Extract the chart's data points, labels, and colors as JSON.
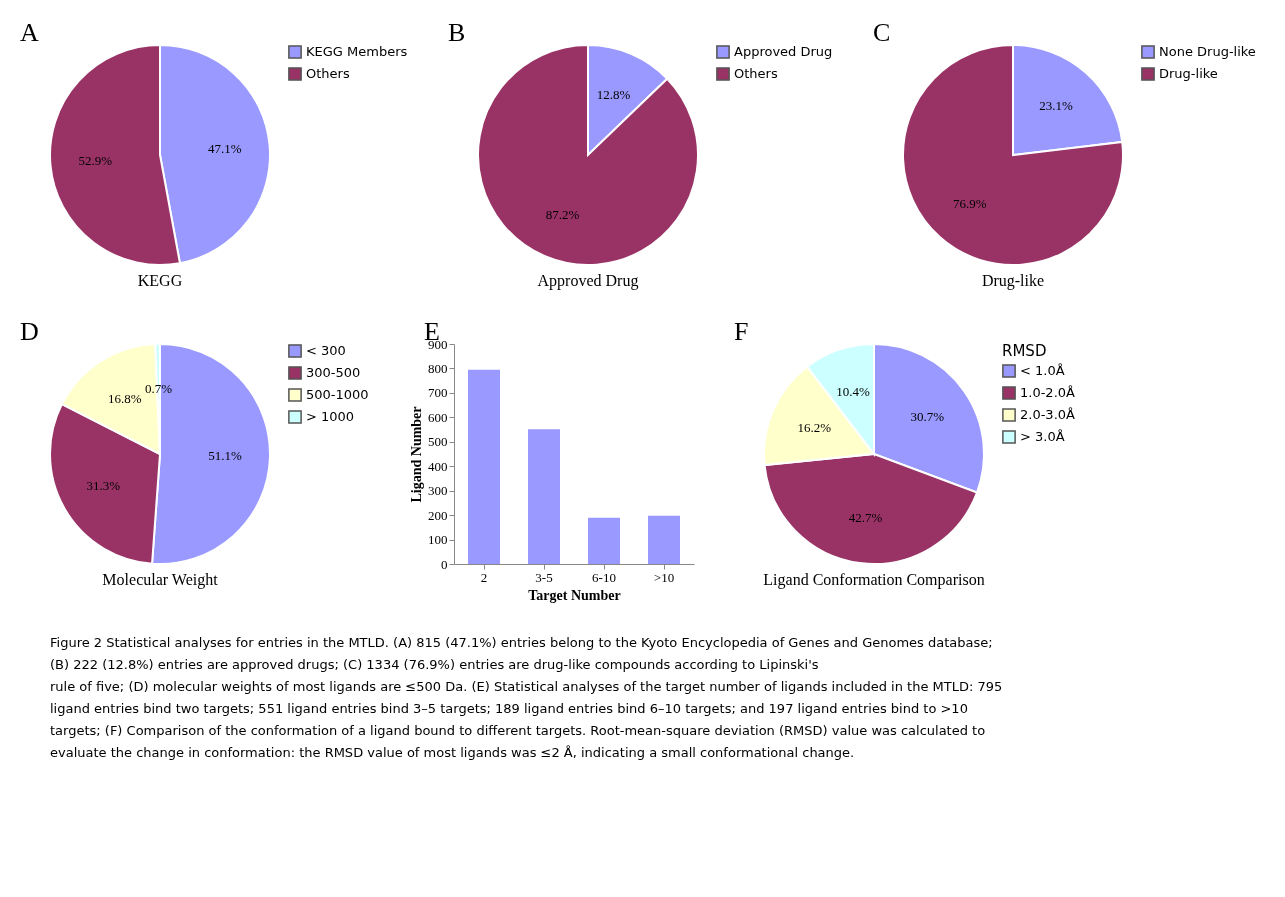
{
  "chart_data": [
    {
      "type": "pie",
      "title": "KEGG",
      "annotations": [
        "A"
      ],
      "categories": [
        "KEGG Members",
        "Others"
      ],
      "values": [
        47.1,
        52.9
      ],
      "value_labels": [
        "47.1%",
        "52.9%"
      ],
      "colors": [
        "#9999ff",
        "#993366"
      ],
      "legend": "right"
    },
    {
      "type": "pie",
      "title": "Approved Drug",
      "annotations": [
        "B"
      ],
      "categories": [
        "Approved Drug",
        "Others"
      ],
      "values": [
        12.8,
        87.2
      ],
      "value_labels": [
        "12.8%",
        "87.2%"
      ],
      "colors": [
        "#9999ff",
        "#993366"
      ],
      "legend": "right"
    },
    {
      "type": "pie",
      "title": "Drug-like",
      "annotations": [
        "C"
      ],
      "categories": [
        "None Drug-like",
        "Drug-like"
      ],
      "values": [
        23.1,
        76.9
      ],
      "value_labels": [
        "23.1%",
        "76.9%"
      ],
      "colors": [
        "#9999ff",
        "#993366"
      ],
      "legend": "right"
    },
    {
      "type": "pie",
      "title": "Molecular Weight",
      "annotations": [
        "D"
      ],
      "categories": [
        "< 300",
        "300-500",
        "500-1000",
        "> 1000"
      ],
      "values": [
        51.1,
        31.3,
        16.8,
        0.7
      ],
      "value_labels": [
        "51.1%",
        "31.3%",
        "16.8%",
        "0.7%"
      ],
      "colors": [
        "#9999ff",
        "#993366",
        "#ffffcc",
        "#ccffff"
      ],
      "legend": "right"
    },
    {
      "type": "bar",
      "annotations": [
        "E"
      ],
      "categories": [
        "2",
        "3-5",
        "6-10",
        ">10"
      ],
      "values": [
        795,
        551,
        189,
        197
      ],
      "color": "#9999ff",
      "ylim": [
        0,
        900
      ],
      "yticks": [
        0,
        100,
        200,
        300,
        400,
        500,
        600,
        700,
        800,
        900
      ],
      "xlabel": "Target Number",
      "ylabel": "Ligand Number"
    },
    {
      "type": "pie",
      "title": "Ligand Conformation Comparison",
      "annotations": [
        "F"
      ],
      "legend_title": "RMSD",
      "categories": [
        "< 1.0Å",
        "1.0-2.0Å",
        "2.0-3.0Å",
        "> 3.0Å"
      ],
      "values": [
        30.7,
        42.7,
        16.2,
        10.4
      ],
      "value_labels": [
        "30.7%",
        "42.7%",
        "16.2%",
        "10.4%"
      ],
      "colors": [
        "#9999ff",
        "#993366",
        "#ffffcc",
        "#ccffff"
      ],
      "legend": "right"
    },
    {
      "type": "other",
      "annotations": [
        "Figure 2 Statistical analyses for entries in the MTLD. (A) 815 (47.1%) entries belong to the Kyoto Encyclopedia of Genes and Genomes database;",
        "(B) 222 (12.8%) entries are approved drugs; (C) 1334 (76.9%) entries are drug-like compounds according to Lipinski's",
        "rule of five; (D) molecular weights of most ligands are ≤500 Da. (E) Statistical analyses of the target number of ligands included in the MTLD: 795",
        "ligand entries bind two targets; 551 ligand entries bind 3–5 targets; 189 ligand entries bind 6–10 targets; and 197 ligand entries bind to >10",
        "targets; (F) Comparison of the conformation of a ligand bound to different targets. Root-mean-square deviation (RMSD) value was calculated to",
        "evaluate the change in conformation: the RMSD value of most ligands was ≤2 Å, indicating a small conformational change."
      ]
    }
  ]
}
